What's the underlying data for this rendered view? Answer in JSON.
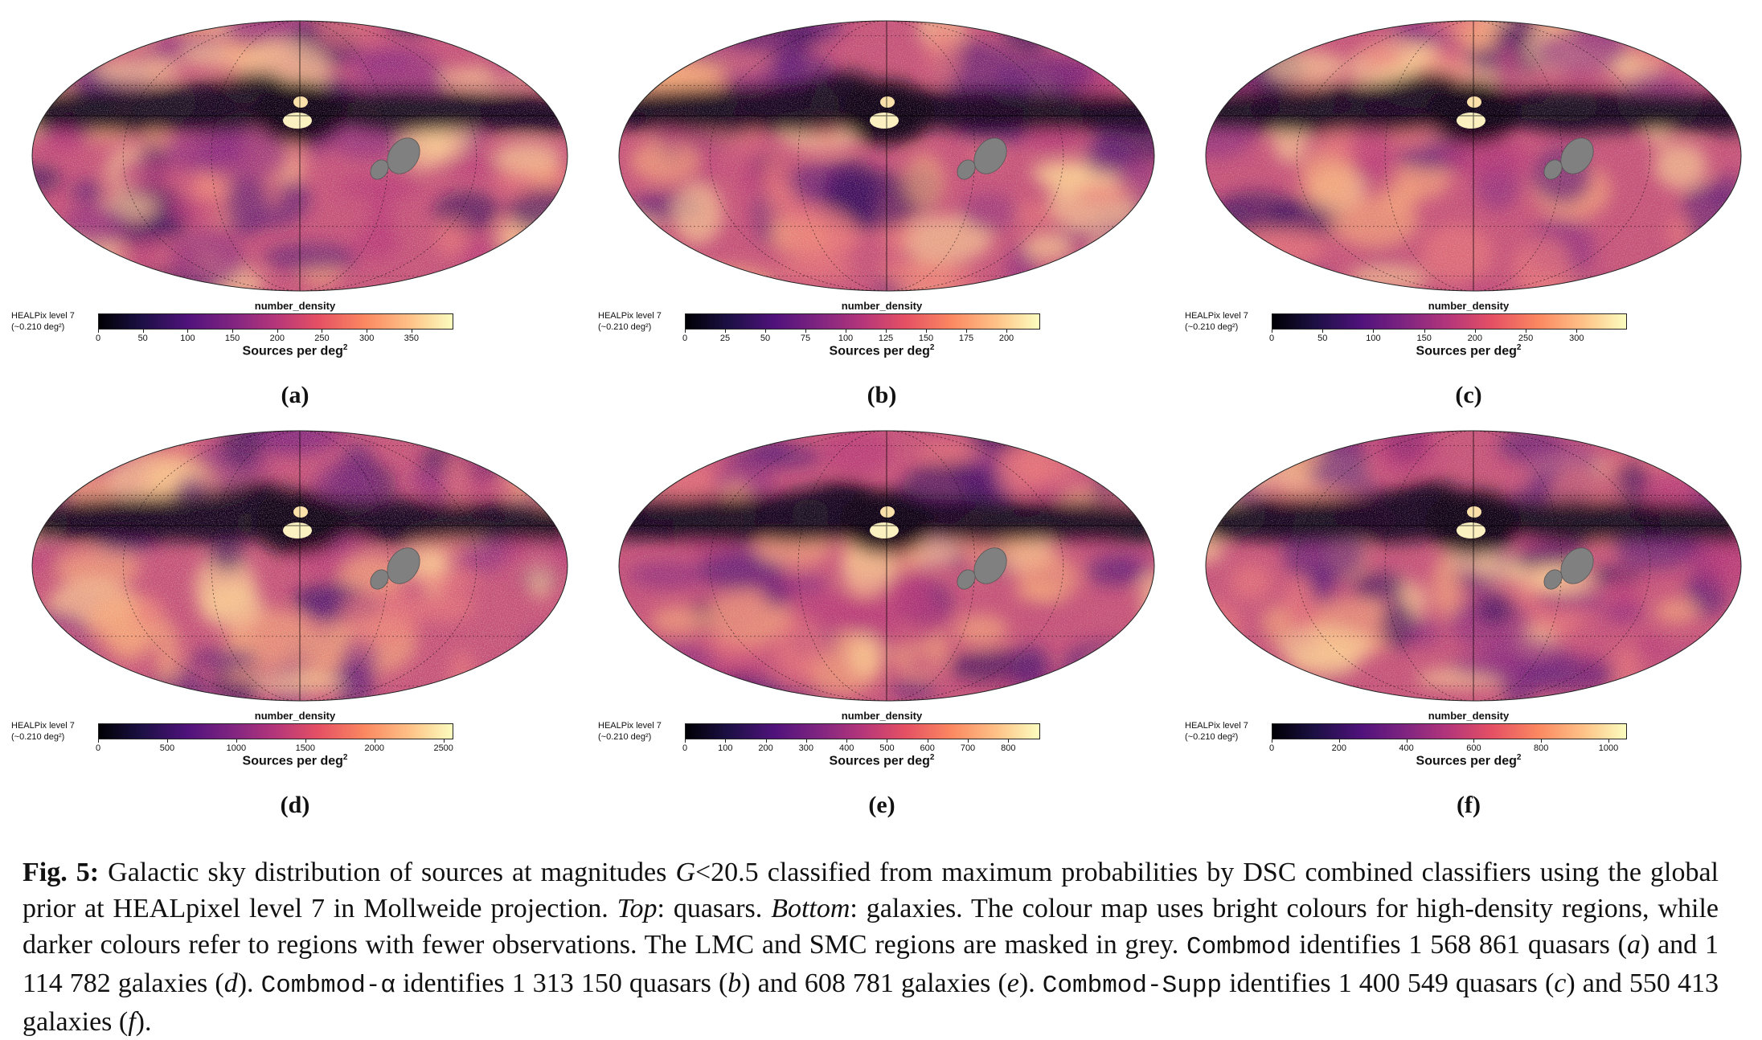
{
  "panels": [
    {
      "id": "a",
      "label": "(a)",
      "colorbar_title": "number_density",
      "healpix_line1": "HEALPix level 7",
      "healpix_line2": "(~0.210 deg²)",
      "unit_prefix": "Sources per deg",
      "unit_exp": "2",
      "vmax": 395,
      "ticks": [
        "0",
        "50",
        "100",
        "150",
        "200",
        "250",
        "300",
        "350"
      ],
      "tick_values": [
        0,
        50,
        100,
        150,
        200,
        250,
        300,
        350
      ],
      "intensity": 0.55
    },
    {
      "id": "b",
      "label": "(b)",
      "colorbar_title": "number_density",
      "healpix_line1": "HEALPix level 7",
      "healpix_line2": "(~0.210 deg²)",
      "unit_prefix": "Sources per deg",
      "unit_exp": "2",
      "vmax": 220,
      "ticks": [
        "0",
        "25",
        "50",
        "75",
        "100",
        "125",
        "150",
        "175",
        "200"
      ],
      "tick_values": [
        0,
        25,
        50,
        75,
        100,
        125,
        150,
        175,
        200
      ],
      "intensity": 0.5
    },
    {
      "id": "c",
      "label": "(c)",
      "colorbar_title": "number_density",
      "healpix_line1": "HEALPix level 7",
      "healpix_line2": "(~0.210 deg²)",
      "unit_prefix": "Sources per deg",
      "unit_exp": "2",
      "vmax": 348,
      "ticks": [
        "0",
        "50",
        "100",
        "150",
        "200",
        "250",
        "300"
      ],
      "tick_values": [
        0,
        50,
        100,
        150,
        200,
        250,
        300
      ],
      "intensity": 0.5
    },
    {
      "id": "d",
      "label": "(d)",
      "colorbar_title": "number_density",
      "healpix_line1": "HEALPix level 7",
      "healpix_line2": "(~0.210 deg²)",
      "unit_prefix": "Sources per deg",
      "unit_exp": "2",
      "vmax": 2560,
      "ticks": [
        "0",
        "500",
        "1000",
        "1500",
        "2000",
        "2500"
      ],
      "tick_values": [
        0,
        500,
        1000,
        1500,
        2000,
        2500
      ],
      "intensity": 0.6
    },
    {
      "id": "e",
      "label": "(e)",
      "colorbar_title": "number_density",
      "healpix_line1": "HEALPix level 7",
      "healpix_line2": "(~0.210 deg²)",
      "unit_prefix": "Sources per deg",
      "unit_exp": "2",
      "vmax": 875,
      "ticks": [
        "0",
        "100",
        "200",
        "300",
        "400",
        "500",
        "600",
        "700",
        "800"
      ],
      "tick_values": [
        0,
        100,
        200,
        300,
        400,
        500,
        600,
        700,
        800
      ],
      "intensity": 0.45
    },
    {
      "id": "f",
      "label": "(f)",
      "colorbar_title": "number_density",
      "healpix_line1": "HEALPix level 7",
      "healpix_line2": "(~0.210 deg²)",
      "unit_prefix": "Sources per deg",
      "unit_exp": "2",
      "vmax": 1050,
      "ticks": [
        "0",
        "200",
        "400",
        "600",
        "800",
        "1000"
      ],
      "tick_values": [
        0,
        200,
        400,
        600,
        800,
        1000
      ],
      "intensity": 0.5
    }
  ],
  "colors": {
    "mask": "#808080",
    "background": "#ffffff",
    "cmap": [
      "#000004",
      "#1c1044",
      "#4f127b",
      "#812581",
      "#b5367a",
      "#e55064",
      "#fb8761",
      "#fec287",
      "#fcfdbf"
    ]
  },
  "caption": {
    "fig_label": "Fig. 5:",
    "text1": " Galactic sky distribution of sources at magnitudes ",
    "g_symbol": "G",
    "text2": "<20.5 classified from maximum probabilities by DSC combined classifiers using the global prior at HEALpixel level 7 in Mollweide projection. ",
    "top_label": "Top",
    "text3": ": quasars. ",
    "bottom_label": "Bottom",
    "text4": ": galaxies. The colour map uses bright colours for high-density regions, while darker colours refer to regions with fewer observations. The LMC and SMC regions are masked in grey. ",
    "model1": "Combmod",
    "text5": " identifies 1 568 861 quasars (",
    "a": "a",
    "text6": ") and 1 114 782 galaxies (",
    "d": "d",
    "text7": "). ",
    "model2": "Combmod-α",
    "text8": " identifies 1 313 150 quasars (",
    "b": "b",
    "text9": ") and 608 781 galaxies (",
    "e": "e",
    "text10": "). ",
    "model3": "Combmod-Supp",
    "text11": " identifies 1 400 549 quasars (",
    "c": "c",
    "text12": ") and 550 413 galaxies (",
    "f": "f",
    "text13": ")."
  }
}
